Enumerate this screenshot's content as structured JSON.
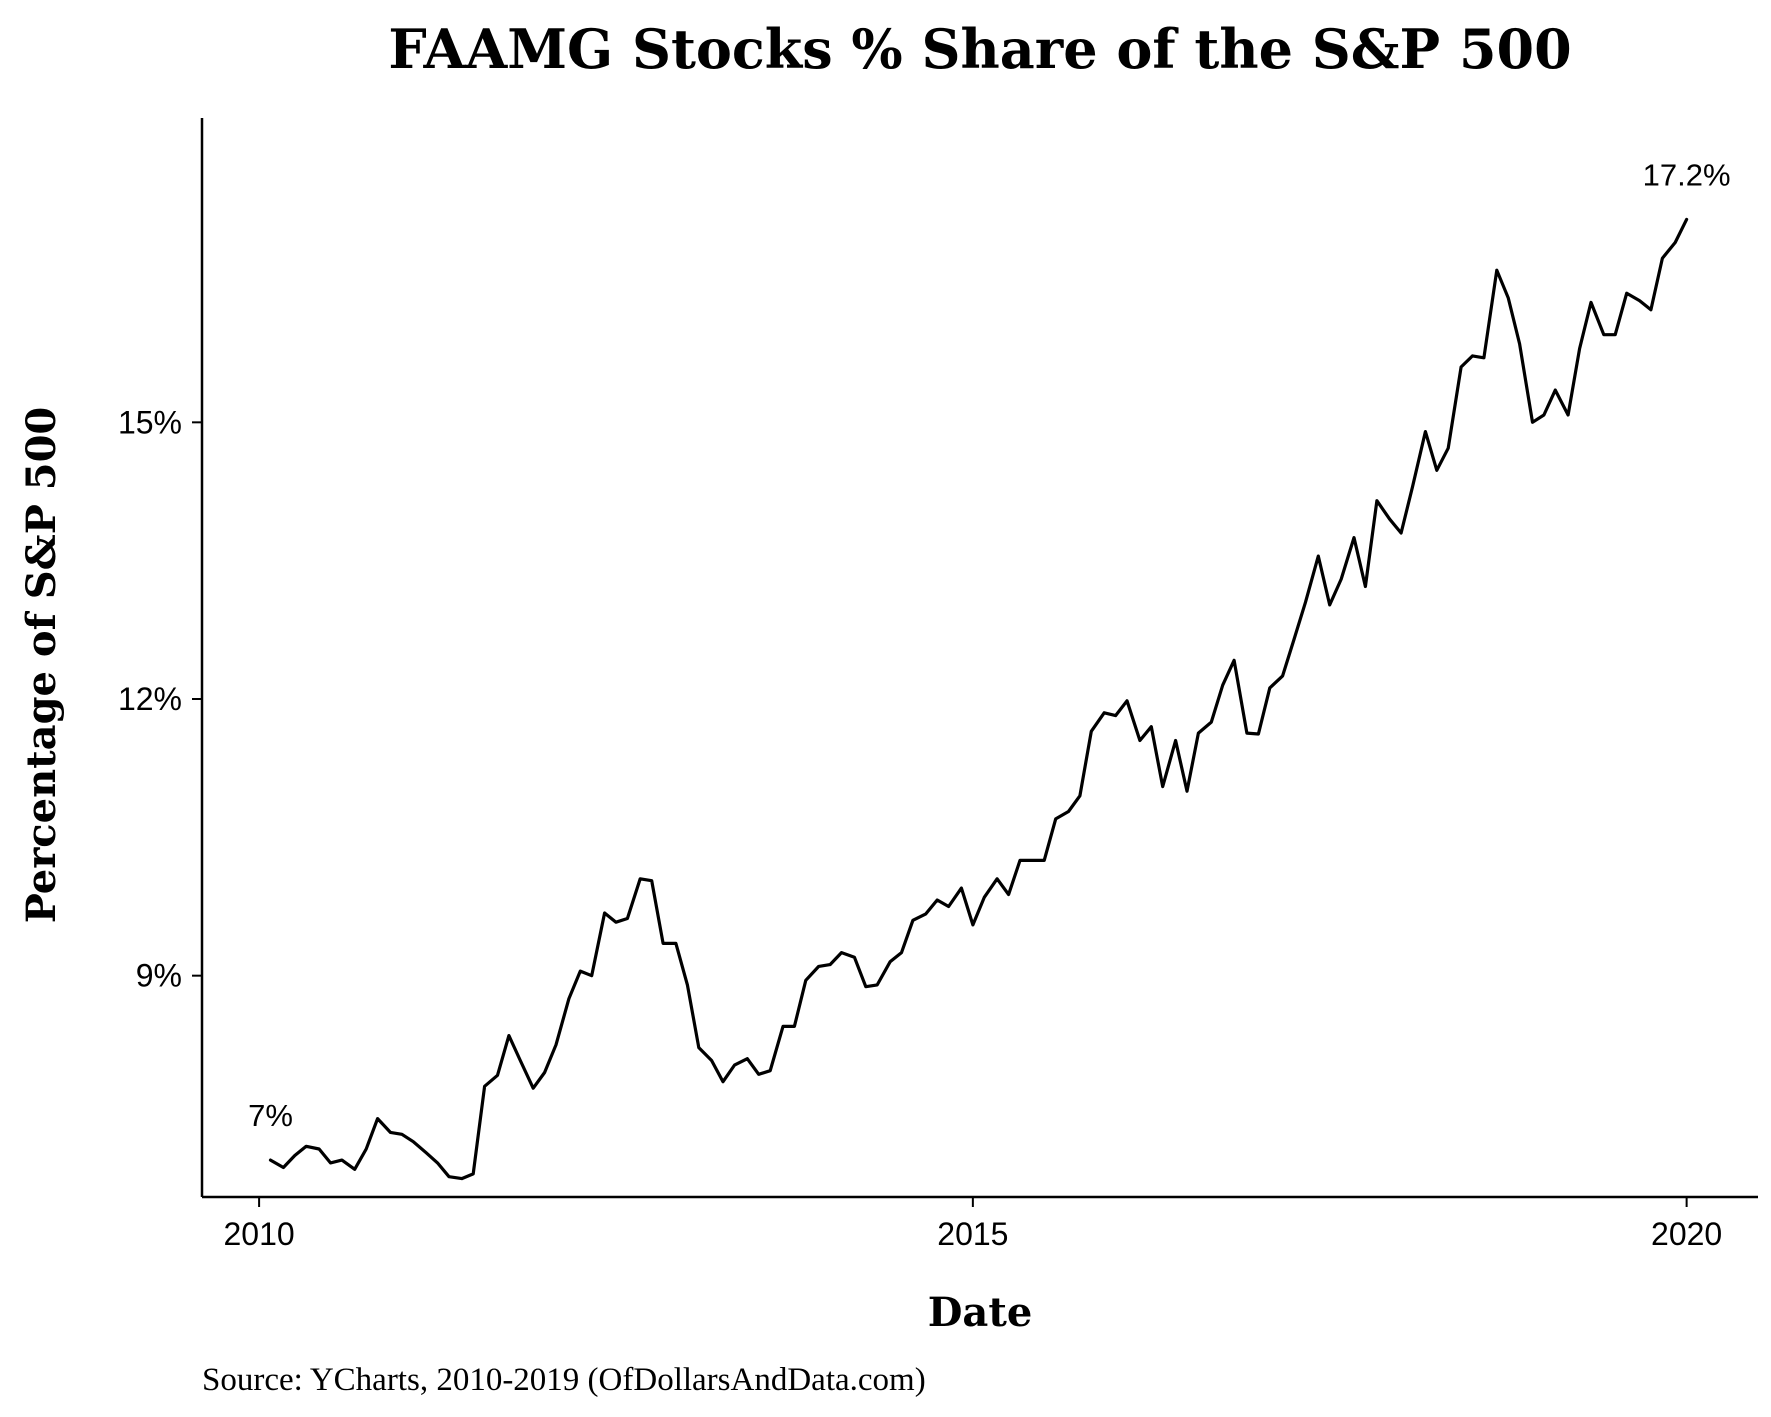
{
  "chart_data": {
    "type": "line",
    "title": "FAAMG Stocks % Share of the S&P 500",
    "xlabel": "Date",
    "ylabel": "Percentage of S&P 500",
    "caption": "Source:  YCharts, 2010-2019 (OfDollarsAndData.com)",
    "xlim": [
      2009.6,
      2020.5
    ],
    "ylim": [
      6.6,
      18.3
    ],
    "x_ticks": [
      {
        "value": 2010,
        "label": "2010"
      },
      {
        "value": 2015,
        "label": "2015"
      },
      {
        "value": 2020,
        "label": "2020"
      }
    ],
    "y_ticks": [
      {
        "value": 9,
        "label": "9%"
      },
      {
        "value": 12,
        "label": "12%"
      },
      {
        "value": 15,
        "label": "15%"
      }
    ],
    "annotations": [
      {
        "text": "7%",
        "x": 2010.08,
        "y": 7.0
      },
      {
        "text": "17.2%",
        "x": 2020.0,
        "y": 17.2
      }
    ],
    "grid": false,
    "legend": "none",
    "line_color": "#000000",
    "series": [
      {
        "values": [
          [
            2010.08,
            7.0
          ],
          [
            2010.17,
            6.92
          ],
          [
            2010.25,
            7.05
          ],
          [
            2010.33,
            7.15
          ],
          [
            2010.42,
            7.12
          ],
          [
            2010.5,
            6.97
          ],
          [
            2010.58,
            7.0
          ],
          [
            2010.67,
            6.9
          ],
          [
            2010.75,
            7.12
          ],
          [
            2010.83,
            7.45
          ],
          [
            2010.92,
            7.3
          ],
          [
            2011.0,
            7.28
          ],
          [
            2011.08,
            7.2
          ],
          [
            2011.17,
            7.08
          ],
          [
            2011.25,
            6.97
          ],
          [
            2011.33,
            6.82
          ],
          [
            2011.42,
            6.8
          ],
          [
            2011.5,
            6.85
          ],
          [
            2011.58,
            7.8
          ],
          [
            2011.67,
            7.92
          ],
          [
            2011.75,
            8.35
          ],
          [
            2011.83,
            8.08
          ],
          [
            2011.92,
            7.78
          ],
          [
            2012.0,
            7.95
          ],
          [
            2012.08,
            8.25
          ],
          [
            2012.17,
            8.75
          ],
          [
            2012.25,
            9.05
          ],
          [
            2012.33,
            9.0
          ],
          [
            2012.42,
            9.68
          ],
          [
            2012.5,
            9.58
          ],
          [
            2012.58,
            9.62
          ],
          [
            2012.67,
            10.05
          ],
          [
            2012.75,
            10.03
          ],
          [
            2012.83,
            9.35
          ],
          [
            2012.92,
            9.35
          ],
          [
            2013.0,
            8.9
          ],
          [
            2013.08,
            8.22
          ],
          [
            2013.17,
            8.08
          ],
          [
            2013.25,
            7.85
          ],
          [
            2013.33,
            8.03
          ],
          [
            2013.42,
            8.1
          ],
          [
            2013.5,
            7.93
          ],
          [
            2013.58,
            7.97
          ],
          [
            2013.67,
            8.45
          ],
          [
            2013.75,
            8.45
          ],
          [
            2013.83,
            8.95
          ],
          [
            2013.92,
            9.1
          ],
          [
            2014.0,
            9.12
          ],
          [
            2014.08,
            9.25
          ],
          [
            2014.17,
            9.2
          ],
          [
            2014.25,
            8.88
          ],
          [
            2014.33,
            8.9
          ],
          [
            2014.42,
            9.15
          ],
          [
            2014.5,
            9.25
          ],
          [
            2014.58,
            9.6
          ],
          [
            2014.67,
            9.67
          ],
          [
            2014.75,
            9.82
          ],
          [
            2014.83,
            9.75
          ],
          [
            2014.92,
            9.95
          ],
          [
            2015.0,
            9.55
          ],
          [
            2015.08,
            9.85
          ],
          [
            2015.17,
            10.05
          ],
          [
            2015.25,
            9.88
          ],
          [
            2015.33,
            10.25
          ],
          [
            2015.42,
            10.25
          ],
          [
            2015.5,
            10.25
          ],
          [
            2015.58,
            10.7
          ],
          [
            2015.67,
            10.78
          ],
          [
            2015.75,
            10.95
          ],
          [
            2015.83,
            11.65
          ],
          [
            2015.92,
            11.85
          ],
          [
            2016.0,
            11.82
          ],
          [
            2016.08,
            11.98
          ],
          [
            2016.17,
            11.55
          ],
          [
            2016.25,
            11.7
          ],
          [
            2016.33,
            11.05
          ],
          [
            2016.42,
            11.55
          ],
          [
            2016.5,
            11.0
          ],
          [
            2016.58,
            11.63
          ],
          [
            2016.67,
            11.75
          ],
          [
            2016.75,
            12.15
          ],
          [
            2016.83,
            12.42
          ],
          [
            2016.92,
            11.63
          ],
          [
            2017.0,
            11.62
          ],
          [
            2017.08,
            12.12
          ],
          [
            2017.17,
            12.25
          ],
          [
            2017.25,
            12.65
          ],
          [
            2017.33,
            13.05
          ],
          [
            2017.42,
            13.55
          ],
          [
            2017.5,
            13.02
          ],
          [
            2017.58,
            13.3
          ],
          [
            2017.67,
            13.75
          ],
          [
            2017.75,
            13.22
          ],
          [
            2017.83,
            14.15
          ],
          [
            2017.92,
            13.95
          ],
          [
            2018.0,
            13.8
          ],
          [
            2018.08,
            14.3
          ],
          [
            2018.17,
            14.9
          ],
          [
            2018.25,
            14.48
          ],
          [
            2018.33,
            14.72
          ],
          [
            2018.42,
            15.6
          ],
          [
            2018.5,
            15.72
          ],
          [
            2018.58,
            15.7
          ],
          [
            2018.67,
            16.65
          ],
          [
            2018.75,
            16.35
          ],
          [
            2018.83,
            15.85
          ],
          [
            2018.92,
            15.0
          ],
          [
            2019.0,
            15.08
          ],
          [
            2019.08,
            15.35
          ],
          [
            2019.17,
            15.08
          ],
          [
            2019.25,
            15.8
          ],
          [
            2019.33,
            16.3
          ],
          [
            2019.42,
            15.95
          ],
          [
            2019.5,
            15.95
          ],
          [
            2019.58,
            16.4
          ],
          [
            2019.67,
            16.32
          ],
          [
            2019.75,
            16.22
          ],
          [
            2019.83,
            16.78
          ],
          [
            2019.92,
            16.95
          ],
          [
            2020.0,
            17.2
          ]
        ]
      }
    ]
  }
}
